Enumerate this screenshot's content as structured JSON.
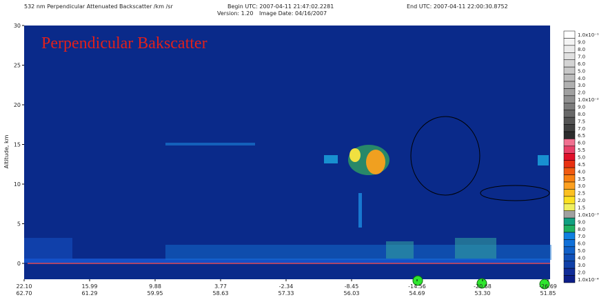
{
  "chart_data": {
    "type": "curtain",
    "title": "532 nm Perpendicular Attenuated Backscatter /km /sr",
    "begin": "Begin UTC: 2007-04-11 21:47:02.2281",
    "end": "End UTC: 2007-04-11 22:00:30.8752",
    "version": "Version: 1.20",
    "image_date": "Image Date: 04/16/2007",
    "ylabel": "Altitude, km",
    "annotation": "Perpendicular Bakscatter",
    "ylim": [
      -2,
      30
    ],
    "yticks": [
      0,
      5,
      10,
      15,
      20,
      25,
      30
    ],
    "x_labels": [
      {
        "lat": "22.10",
        "lon": "62.70"
      },
      {
        "lat": "15.99",
        "lon": "61.29"
      },
      {
        "lat": "9.88",
        "lon": "59.95"
      },
      {
        "lat": "3.77",
        "lon": "58.63"
      },
      {
        "lat": "-2.34",
        "lon": "57.33"
      },
      {
        "lat": "-8.45",
        "lon": "56.03"
      },
      {
        "lat": "-14.56",
        "lon": "54.69"
      },
      {
        "lat": "-20.68",
        "lon": "53.30"
      },
      {
        "lat": "-26.69",
        "lon": "51.85"
      }
    ],
    "colorbar": {
      "labels": [
        "1.0x10⁻¹",
        "9.0",
        "8.0",
        "7.0",
        "6.0",
        "5.0",
        "4.0",
        "3.0",
        "2.0",
        "1.0x10⁻²",
        "9.0",
        "8.0",
        "7.5",
        "7.0",
        "6.5",
        "6.0",
        "5.5",
        "5.0",
        "4.5",
        "4.0",
        "3.5",
        "3.0",
        "2.5",
        "2.0",
        "1.5",
        "1.0x10⁻³",
        "9.0",
        "8.0",
        "7.0",
        "6.0",
        "5.0",
        "4.0",
        "3.0",
        "2.0",
        "1.0x10⁻⁴"
      ],
      "colors": [
        "#ffffff",
        "#f4f4f4",
        "#ebebeb",
        "#e0e0e0",
        "#d4d4d4",
        "#c8c8c8",
        "#bcbcbc",
        "#b0b0b0",
        "#a0a0a0",
        "#909090",
        "#7c7c7c",
        "#686868",
        "#545454",
        "#404040",
        "#2c2c2c",
        "#f07090",
        "#e84068",
        "#e0102a",
        "#e83010",
        "#f05a10",
        "#f88010",
        "#fca020",
        "#fcc020",
        "#fce020",
        "#f0f060",
        "#a0a0a0",
        "#10a080",
        "#20b060",
        "#1080e0",
        "#1070d8",
        "#1060c8",
        "#1050b8",
        "#1040a8",
        "#102c98",
        "#0c1e88"
      ]
    }
  }
}
